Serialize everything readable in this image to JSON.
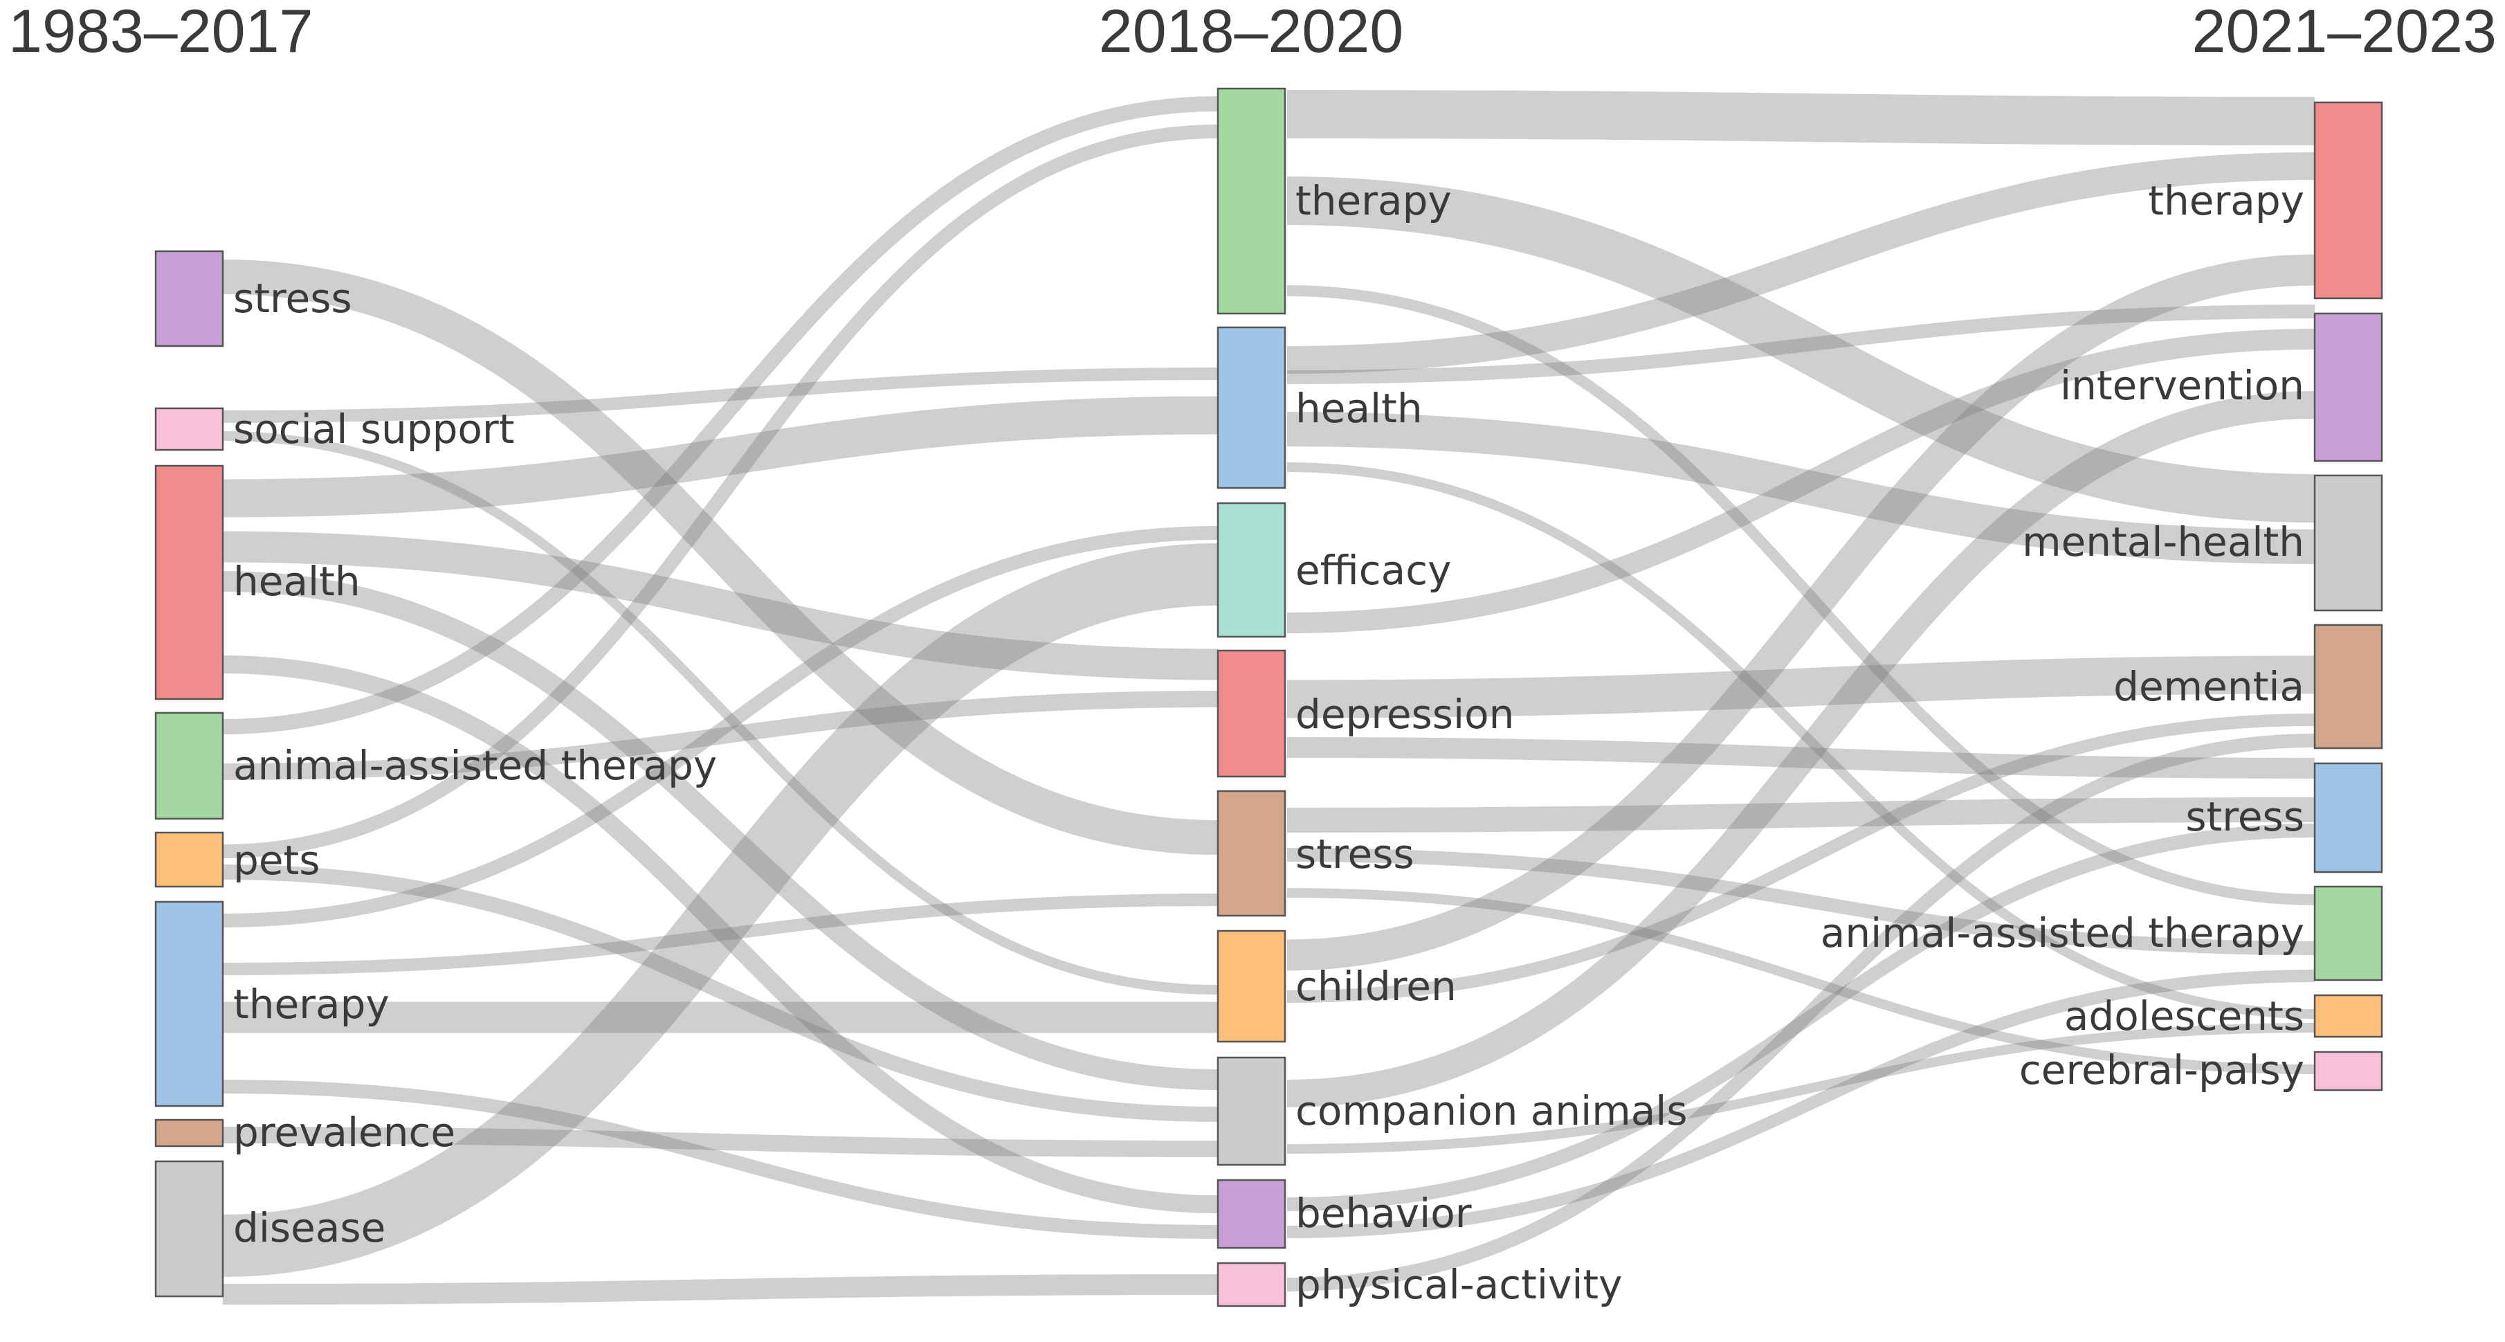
{
  "periods": [
    "1983–2017",
    "2018–2020",
    "2021–2023"
  ],
  "columns": [
    [
      {
        "id": "c0-stress",
        "label": "stress",
        "color": "#c9a0d6"
      },
      {
        "id": "c0-social-support",
        "label": "social support",
        "color": "#f9c0da"
      },
      {
        "id": "c0-health",
        "label": "health",
        "color": "#f28b8b"
      },
      {
        "id": "c0-animal-assisted-therapy",
        "label": "animal-assisted therapy",
        "color": "#a3d9a0"
      },
      {
        "id": "c0-pets",
        "label": "pets",
        "color": "#fcc07a"
      },
      {
        "id": "c0-therapy",
        "label": "therapy",
        "color": "#9ec4e6"
      },
      {
        "id": "c0-prevalence",
        "label": "prevalence",
        "color": "#d4a78c"
      },
      {
        "id": "c0-disease",
        "label": "disease",
        "color": "#cccccc"
      }
    ],
    [
      {
        "id": "c1-therapy",
        "label": "therapy",
        "color": "#a3d9a0"
      },
      {
        "id": "c1-health",
        "label": "health",
        "color": "#9ec4e6"
      },
      {
        "id": "c1-efficacy",
        "label": "efficacy",
        "color": "#a8e0d2"
      },
      {
        "id": "c1-depression",
        "label": "depression",
        "color": "#f28b8b"
      },
      {
        "id": "c1-stress",
        "label": "stress",
        "color": "#d4a78c"
      },
      {
        "id": "c1-children",
        "label": "children",
        "color": "#fcc07a"
      },
      {
        "id": "c1-companion-animals",
        "label": "companion animals",
        "color": "#cccccc"
      },
      {
        "id": "c1-behavior",
        "label": "behavior",
        "color": "#c9a0d6"
      },
      {
        "id": "c1-physical-activity",
        "label": "physical-activity",
        "color": "#f9c0da"
      }
    ],
    [
      {
        "id": "c2-therapy",
        "label": "therapy",
        "color": "#f28b8b"
      },
      {
        "id": "c2-intervention",
        "label": "intervention",
        "color": "#c9a0d6"
      },
      {
        "id": "c2-mental-health",
        "label": "mental-health",
        "color": "#cccccc"
      },
      {
        "id": "c2-dementia",
        "label": "dementia",
        "color": "#d4a78c"
      },
      {
        "id": "c2-stress",
        "label": "stress",
        "color": "#9ec4e6"
      },
      {
        "id": "c2-animal-assisted-therapy",
        "label": "animal-assisted therapy",
        "color": "#a3d9a0"
      },
      {
        "id": "c2-adolescents",
        "label": "adolescents",
        "color": "#fcc07a"
      },
      {
        "id": "c2-cerebral-palsy",
        "label": "cerebral-palsy",
        "color": "#f9c0da"
      }
    ]
  ]
}
